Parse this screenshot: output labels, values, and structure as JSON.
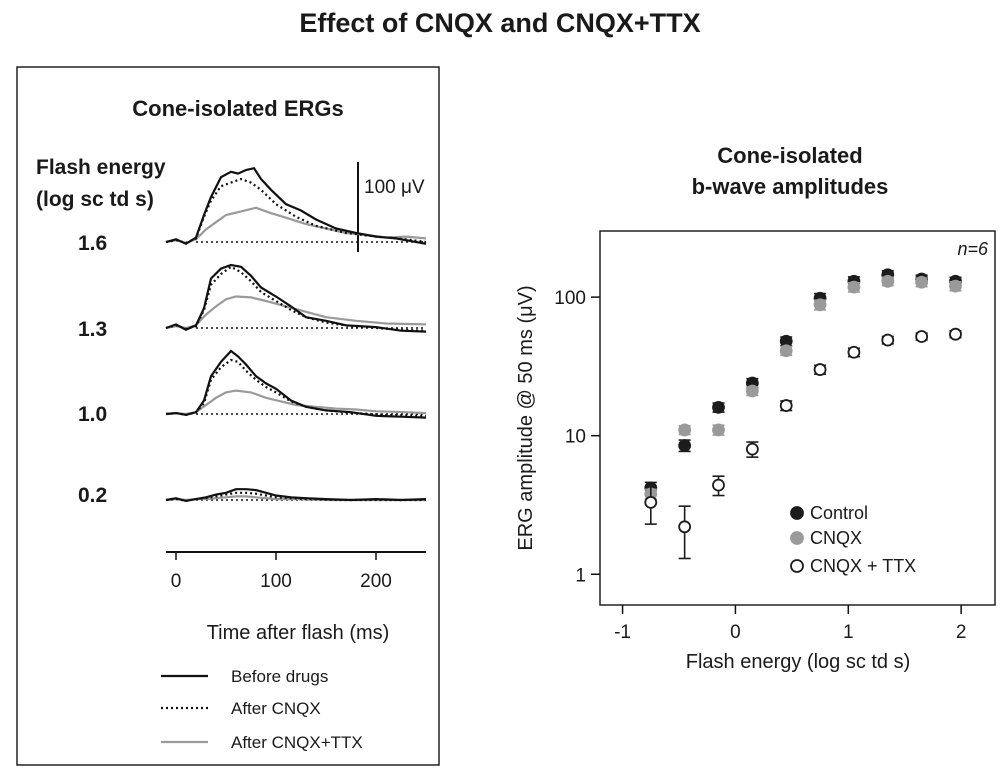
{
  "title": "Effect of CNQX and CNQX+TTX",
  "chart_data": [
    {
      "type": "line",
      "title": "Cone-isolated  ERGs",
      "ylabel_line1": "Flash energy",
      "ylabel_line2": "(log sc td s)",
      "xlabel": "Time after flash (ms)",
      "xlim": [
        -10,
        250
      ],
      "xticks": [
        0,
        100,
        200
      ],
      "scale_bar_label": "100 μV",
      "scale_bar_uv": 100,
      "legend": [
        "Before drugs",
        "After CNQX",
        "After CNQX+TTX"
      ],
      "panels": [
        {
          "energy": "1.6",
          "before": [
            [
              -10,
              0
            ],
            [
              0,
              3
            ],
            [
              10,
              -2
            ],
            [
              20,
              5
            ],
            [
              28,
              30
            ],
            [
              35,
              50
            ],
            [
              45,
              72
            ],
            [
              55,
              78
            ],
            [
              62,
              76
            ],
            [
              70,
              80
            ],
            [
              78,
              82
            ],
            [
              85,
              70
            ],
            [
              95,
              58
            ],
            [
              110,
              42
            ],
            [
              125,
              35
            ],
            [
              140,
              25
            ],
            [
              160,
              15
            ],
            [
              180,
              10
            ],
            [
              200,
              6
            ],
            [
              220,
              4
            ],
            [
              250,
              -2
            ]
          ],
          "cnqx": [
            [
              -10,
              0
            ],
            [
              0,
              2
            ],
            [
              10,
              -1
            ],
            [
              20,
              4
            ],
            [
              28,
              28
            ],
            [
              35,
              46
            ],
            [
              45,
              62
            ],
            [
              55,
              66
            ],
            [
              65,
              70
            ],
            [
              75,
              66
            ],
            [
              85,
              58
            ],
            [
              100,
              42
            ],
            [
              120,
              28
            ],
            [
              140,
              18
            ],
            [
              170,
              10
            ],
            [
              200,
              6
            ],
            [
              230,
              3
            ],
            [
              250,
              0
            ]
          ],
          "cnqx_ttx": [
            [
              -10,
              0
            ],
            [
              0,
              2
            ],
            [
              10,
              -1
            ],
            [
              20,
              3
            ],
            [
              30,
              14
            ],
            [
              40,
              22
            ],
            [
              50,
              30
            ],
            [
              65,
              34
            ],
            [
              80,
              38
            ],
            [
              95,
              32
            ],
            [
              110,
              27
            ],
            [
              130,
              20
            ],
            [
              150,
              15
            ],
            [
              170,
              10
            ],
            [
              190,
              8
            ],
            [
              210,
              5
            ],
            [
              230,
              6
            ],
            [
              250,
              4
            ]
          ]
        },
        {
          "energy": "1.3",
          "before": [
            [
              -10,
              0
            ],
            [
              0,
              4
            ],
            [
              10,
              -2
            ],
            [
              20,
              3
            ],
            [
              28,
              22
            ],
            [
              35,
              55
            ],
            [
              45,
              66
            ],
            [
              55,
              70
            ],
            [
              65,
              68
            ],
            [
              75,
              58
            ],
            [
              85,
              45
            ],
            [
              100,
              35
            ],
            [
              115,
              24
            ],
            [
              130,
              12
            ],
            [
              150,
              8
            ],
            [
              170,
              3
            ],
            [
              200,
              1
            ],
            [
              225,
              -3
            ],
            [
              250,
              -4
            ]
          ],
          "cnqx": [
            [
              -10,
              0
            ],
            [
              0,
              3
            ],
            [
              10,
              -1
            ],
            [
              20,
              2
            ],
            [
              28,
              20
            ],
            [
              35,
              48
            ],
            [
              45,
              60
            ],
            [
              55,
              68
            ],
            [
              65,
              62
            ],
            [
              75,
              52
            ],
            [
              85,
              40
            ],
            [
              100,
              30
            ],
            [
              115,
              20
            ],
            [
              130,
              12
            ],
            [
              150,
              6
            ],
            [
              175,
              2
            ],
            [
              200,
              0
            ],
            [
              225,
              -2
            ],
            [
              250,
              -3
            ]
          ],
          "cnqx_ttx": [
            [
              -10,
              0
            ],
            [
              0,
              2
            ],
            [
              10,
              0
            ],
            [
              20,
              3
            ],
            [
              30,
              15
            ],
            [
              40,
              24
            ],
            [
              50,
              32
            ],
            [
              60,
              35
            ],
            [
              75,
              34
            ],
            [
              90,
              30
            ],
            [
              110,
              24
            ],
            [
              130,
              18
            ],
            [
              150,
              12
            ],
            [
              180,
              8
            ],
            [
              210,
              5
            ],
            [
              250,
              4
            ]
          ]
        },
        {
          "energy": "1.0",
          "before": [
            [
              -10,
              0
            ],
            [
              0,
              1
            ],
            [
              10,
              -1
            ],
            [
              20,
              2
            ],
            [
              28,
              15
            ],
            [
              35,
              42
            ],
            [
              45,
              58
            ],
            [
              55,
              70
            ],
            [
              62,
              64
            ],
            [
              70,
              55
            ],
            [
              80,
              42
            ],
            [
              90,
              34
            ],
            [
              100,
              28
            ],
            [
              115,
              15
            ],
            [
              130,
              8
            ],
            [
              150,
              4
            ],
            [
              175,
              2
            ],
            [
              200,
              -2
            ],
            [
              225,
              -3
            ],
            [
              250,
              -4
            ]
          ],
          "cnqx": [
            [
              -10,
              0
            ],
            [
              0,
              1
            ],
            [
              10,
              -1
            ],
            [
              20,
              2
            ],
            [
              28,
              12
            ],
            [
              35,
              38
            ],
            [
              45,
              52
            ],
            [
              55,
              60
            ],
            [
              62,
              58
            ],
            [
              70,
              48
            ],
            [
              80,
              38
            ],
            [
              90,
              30
            ],
            [
              100,
              24
            ],
            [
              115,
              14
            ],
            [
              130,
              8
            ],
            [
              150,
              4
            ],
            [
              180,
              1
            ],
            [
              210,
              -1
            ],
            [
              250,
              -2
            ]
          ],
          "cnqx_ttx": [
            [
              -10,
              0
            ],
            [
              0,
              1
            ],
            [
              10,
              0
            ],
            [
              20,
              2
            ],
            [
              30,
              10
            ],
            [
              40,
              18
            ],
            [
              50,
              24
            ],
            [
              60,
              26
            ],
            [
              75,
              24
            ],
            [
              90,
              18
            ],
            [
              105,
              14
            ],
            [
              120,
              10
            ],
            [
              140,
              8
            ],
            [
              160,
              6
            ],
            [
              180,
              5
            ],
            [
              200,
              3
            ],
            [
              230,
              2
            ],
            [
              250,
              1
            ]
          ]
        },
        {
          "energy": "0.2",
          "before": [
            [
              -10,
              0
            ],
            [
              0,
              2
            ],
            [
              10,
              -1
            ],
            [
              20,
              1
            ],
            [
              30,
              3
            ],
            [
              40,
              6
            ],
            [
              50,
              8
            ],
            [
              60,
              12
            ],
            [
              70,
              12
            ],
            [
              80,
              11
            ],
            [
              90,
              8
            ],
            [
              100,
              5
            ],
            [
              115,
              3
            ],
            [
              130,
              2
            ],
            [
              150,
              1
            ],
            [
              175,
              0
            ],
            [
              200,
              1
            ],
            [
              225,
              0
            ],
            [
              250,
              1
            ]
          ],
          "cnqx": [
            [
              -10,
              0
            ],
            [
              0,
              1
            ],
            [
              10,
              -1
            ],
            [
              20,
              1
            ],
            [
              30,
              2
            ],
            [
              40,
              4
            ],
            [
              50,
              6
            ],
            [
              60,
              8
            ],
            [
              70,
              8
            ],
            [
              80,
              7
            ],
            [
              90,
              5
            ],
            [
              100,
              3
            ],
            [
              115,
              2
            ],
            [
              130,
              1
            ],
            [
              160,
              0
            ],
            [
              200,
              0
            ],
            [
              250,
              0
            ]
          ],
          "cnqx_ttx": [
            [
              -10,
              0
            ],
            [
              0,
              1
            ],
            [
              10,
              0
            ],
            [
              20,
              1
            ],
            [
              30,
              1
            ],
            [
              40,
              2
            ],
            [
              50,
              3
            ],
            [
              60,
              4
            ],
            [
              70,
              4
            ],
            [
              80,
              3
            ],
            [
              90,
              2
            ],
            [
              100,
              1
            ],
            [
              120,
              1
            ],
            [
              150,
              0
            ],
            [
              200,
              0
            ],
            [
              250,
              0
            ]
          ]
        }
      ]
    },
    {
      "type": "scatter",
      "title_line1": "Cone-isolated",
      "title_line2": "b-wave amplitudes",
      "xlabel": "Flash energy (log sc td s)",
      "ylabel": "ERG amplitude @ 50 ms (μV)",
      "xlim": [
        -1.2,
        2.3
      ],
      "ylim_log": [
        0.6,
        300
      ],
      "xticks": [
        -1,
        0,
        1,
        2
      ],
      "yticks": [
        1,
        10,
        100
      ],
      "annotation": "n=6",
      "series": [
        {
          "name": "Control",
          "style": "filled-dark",
          "x": [
            -0.75,
            -0.45,
            -0.15,
            0.15,
            0.45,
            0.75,
            1.05,
            1.35,
            1.65,
            1.95
          ],
          "y": [
            4.2,
            8.5,
            16,
            24,
            48,
            98,
            130,
            145,
            135,
            130
          ],
          "err": [
            0.4,
            0.8,
            1.2,
            1.8,
            3.5,
            8,
            10,
            10,
            9,
            9
          ]
        },
        {
          "name": "CNQX",
          "style": "filled-gray",
          "x": [
            -0.75,
            -0.45,
            -0.15,
            0.15,
            0.45,
            0.75,
            1.05,
            1.35,
            1.65,
            1.95
          ],
          "y": [
            3.8,
            11,
            11,
            21,
            41,
            88,
            118,
            130,
            128,
            120
          ],
          "err": [
            0.3,
            0.8,
            0.9,
            1.5,
            3,
            7,
            9,
            9,
            9,
            9
          ]
        },
        {
          "name": "CNQX + TTX",
          "style": "open",
          "x": [
            -0.75,
            -0.45,
            -0.15,
            0.15,
            0.45,
            0.75,
            1.05,
            1.35,
            1.65,
            1.95
          ],
          "y": [
            3.3,
            2.2,
            4.4,
            8,
            16.5,
            30,
            40,
            49,
            52,
            54
          ],
          "err": [
            1.0,
            0.9,
            0.7,
            1.0,
            1.3,
            2.2,
            2.8,
            3.0,
            3.0,
            3.0
          ]
        }
      ]
    }
  ]
}
